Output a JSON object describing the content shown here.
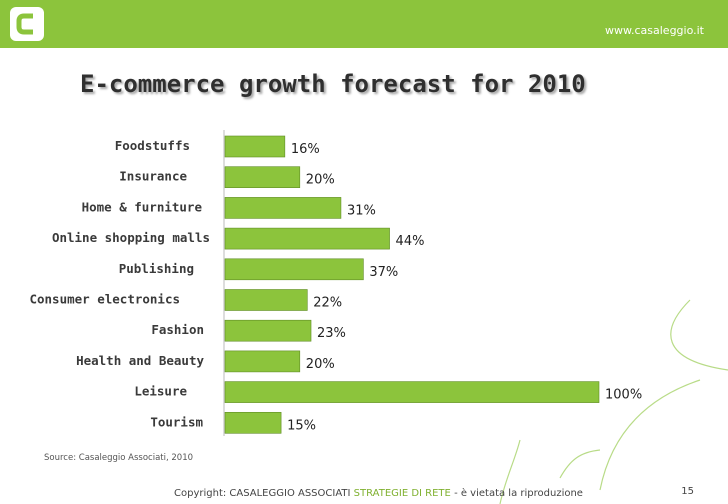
{
  "header": {
    "url": "www.casaleggio.it"
  },
  "colors": {
    "accent": "#8cc43c",
    "bar": "#8cc43c",
    "bar_dark": "#5f8d24"
  },
  "chart_data": {
    "type": "bar",
    "orientation": "horizontal",
    "title": "E-commerce growth forecast for 2010",
    "categories": [
      "Foodstuffs",
      "Insurance",
      "Home & furniture",
      "Online shopping malls",
      "Publishing",
      "Consumer electronics",
      "Fashion",
      "Health and Beauty",
      "Leisure",
      "Tourism"
    ],
    "values": [
      16,
      20,
      31,
      44,
      37,
      22,
      23,
      20,
      100,
      15
    ],
    "value_labels": [
      "16%",
      "20%",
      "31%",
      "44%",
      "37%",
      "22%",
      "23%",
      "20%",
      "100%",
      "15%"
    ],
    "xlim": [
      0,
      100
    ],
    "grid": false,
    "legend": "none"
  },
  "source": {
    "text": "Source: Casaleggio Associati, 2010"
  },
  "footer": {
    "copyright": "Copyright: CASALEGGIO ASSOCIATI",
    "highlight": "STRATEGIE DI RETE",
    "rest": "- è vietata la riproduzione",
    "page_number": "15"
  }
}
